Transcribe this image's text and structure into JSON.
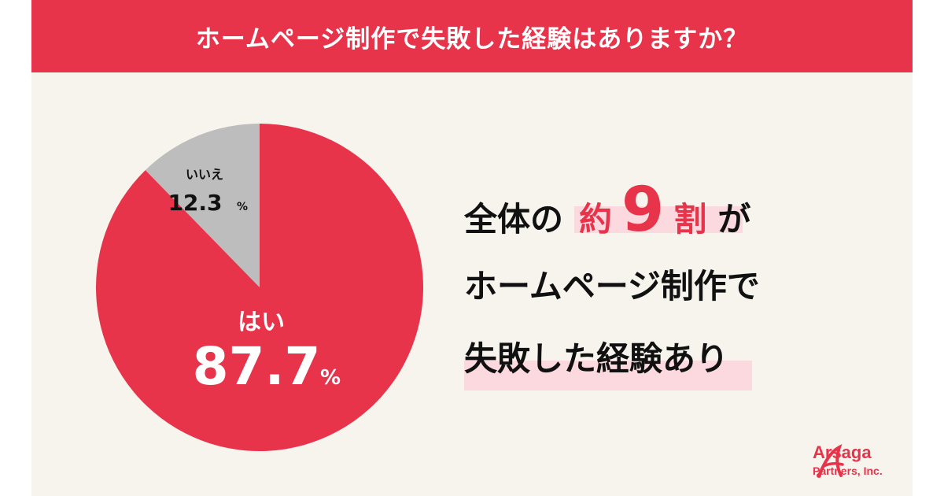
{
  "header": {
    "title": "ホームページ制作で失敗した経験はありますか？"
  },
  "chart_data": {
    "type": "pie",
    "title": "ホームページ制作で失敗した経験はありますか？",
    "slices": [
      {
        "label": "はい",
        "value": 87.7,
        "display": "87.7",
        "unit": "%",
        "color": "#e8344b",
        "label_color": "#ffffff"
      },
      {
        "label": "いいえ",
        "value": 12.3,
        "display": "12.3",
        "unit": "%",
        "color": "#bdbdbd",
        "label_color": "#111111"
      }
    ],
    "start": "top",
    "direction": "clockwise"
  },
  "message": {
    "line1_prefix": "全体の",
    "line1_approx": "約",
    "line1_number": "9",
    "line1_unit": "割",
    "line1_suffix": "が",
    "line2": "ホームページ制作で",
    "line3": "失敗した経験あり"
  },
  "logo": {
    "name": "Arsaga",
    "sub": "Partners, Inc.",
    "icon": "arsaga-logo-icon"
  },
  "colors": {
    "accent": "#e8344b",
    "highlight": "#fbd9de",
    "background": "#f7f4ee",
    "gray": "#bdbdbd"
  }
}
